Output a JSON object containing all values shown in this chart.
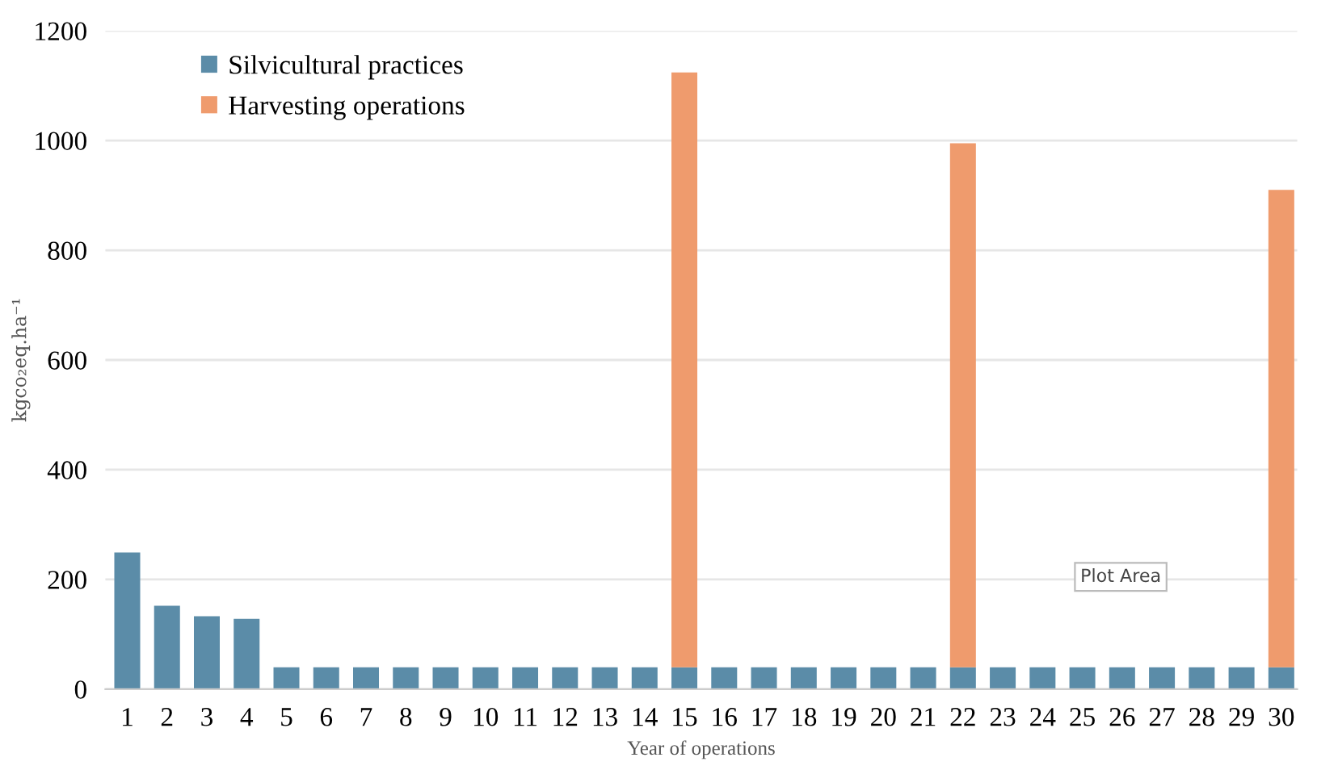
{
  "chart_data": {
    "type": "bar",
    "stacked": true,
    "xlabel": "Year of operations",
    "ylabel": "kgco₂eq.ha⁻¹",
    "categories": [
      "1",
      "2",
      "3",
      "4",
      "5",
      "6",
      "7",
      "8",
      "9",
      "10",
      "11",
      "12",
      "13",
      "14",
      "15",
      "16",
      "17",
      "18",
      "19",
      "20",
      "21",
      "22",
      "23",
      "24",
      "25",
      "26",
      "27",
      "28",
      "29",
      "30"
    ],
    "series": [
      {
        "name": "Silvicultural practices",
        "color": "#5b8ca8",
        "values": [
          249,
          152,
          133,
          128,
          40,
          40,
          40,
          40,
          40,
          40,
          40,
          40,
          40,
          40,
          40,
          40,
          40,
          40,
          40,
          40,
          40,
          40,
          40,
          40,
          40,
          40,
          40,
          40,
          40,
          40
        ]
      },
      {
        "name": "Harvesting operations",
        "color": "#ef9b6d",
        "values": [
          null,
          null,
          null,
          null,
          null,
          null,
          null,
          null,
          null,
          null,
          null,
          null,
          null,
          null,
          1084,
          null,
          null,
          null,
          null,
          null,
          null,
          955,
          null,
          null,
          null,
          null,
          null,
          null,
          null,
          870
        ]
      }
    ],
    "ylim": [
      0,
      1200
    ],
    "yticks": [
      0,
      200,
      400,
      600,
      800,
      1000,
      1200
    ],
    "grid": "y",
    "legend": "top left",
    "annotations": [
      "Plot Area"
    ]
  }
}
